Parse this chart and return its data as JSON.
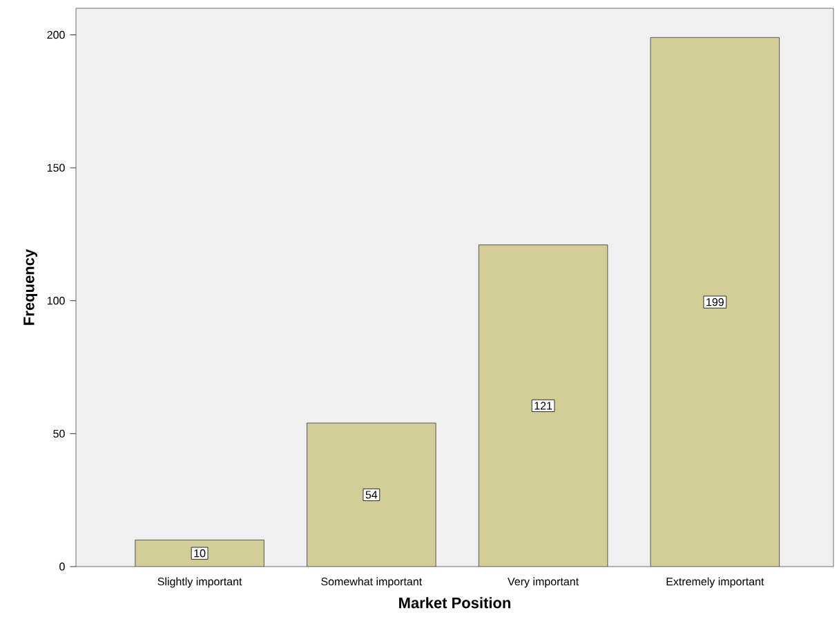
{
  "chart_data": {
    "type": "bar",
    "xlabel": "Market Position",
    "ylabel": "Frequency",
    "categories": [
      "Slightly important",
      "Somewhat important",
      "Very important",
      "Extremely important"
    ],
    "values": [
      10,
      54,
      121,
      199
    ],
    "color": "#d3ce97",
    "ylim": [
      0,
      210
    ],
    "yticks": [
      0,
      50,
      100,
      150,
      200
    ],
    "data_labels": true
  }
}
